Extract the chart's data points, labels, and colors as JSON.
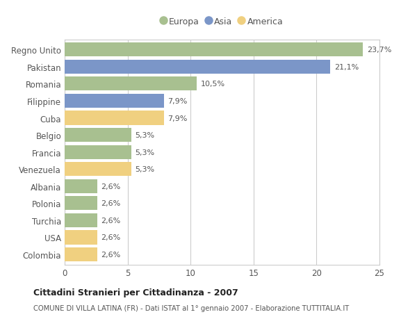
{
  "categories": [
    "Colombia",
    "USA",
    "Turchia",
    "Polonia",
    "Albania",
    "Venezuela",
    "Francia",
    "Belgio",
    "Cuba",
    "Filippine",
    "Romania",
    "Pakistan",
    "Regno Unito"
  ],
  "values": [
    2.6,
    2.6,
    2.6,
    2.6,
    2.6,
    5.3,
    5.3,
    5.3,
    7.9,
    7.9,
    10.5,
    21.1,
    23.7
  ],
  "labels": [
    "2,6%",
    "2,6%",
    "2,6%",
    "2,6%",
    "2,6%",
    "5,3%",
    "5,3%",
    "5,3%",
    "7,9%",
    "7,9%",
    "10,5%",
    "21,1%",
    "23,7%"
  ],
  "colors": [
    "#f0d080",
    "#f0d080",
    "#a8c090",
    "#a8c090",
    "#a8c090",
    "#f0d080",
    "#a8c090",
    "#a8c090",
    "#f0d080",
    "#7b96c8",
    "#a8c090",
    "#7b96c8",
    "#a8c090"
  ],
  "legend": [
    {
      "label": "Europa",
      "color": "#a8c090"
    },
    {
      "label": "Asia",
      "color": "#7b96c8"
    },
    {
      "label": "America",
      "color": "#f0d080"
    }
  ],
  "xlim": [
    0,
    25
  ],
  "xticks": [
    0,
    5,
    10,
    15,
    20,
    25
  ],
  "title": "Cittadini Stranieri per Cittadinanza - 2007",
  "subtitle": "COMUNE DI VILLA LATINA (FR) - Dati ISTAT al 1° gennaio 2007 - Elaborazione TUTTITALIA.IT",
  "background_color": "#ffffff",
  "plot_bg_color": "#ffffff",
  "grid_color": "#cccccc",
  "bar_height": 0.82
}
